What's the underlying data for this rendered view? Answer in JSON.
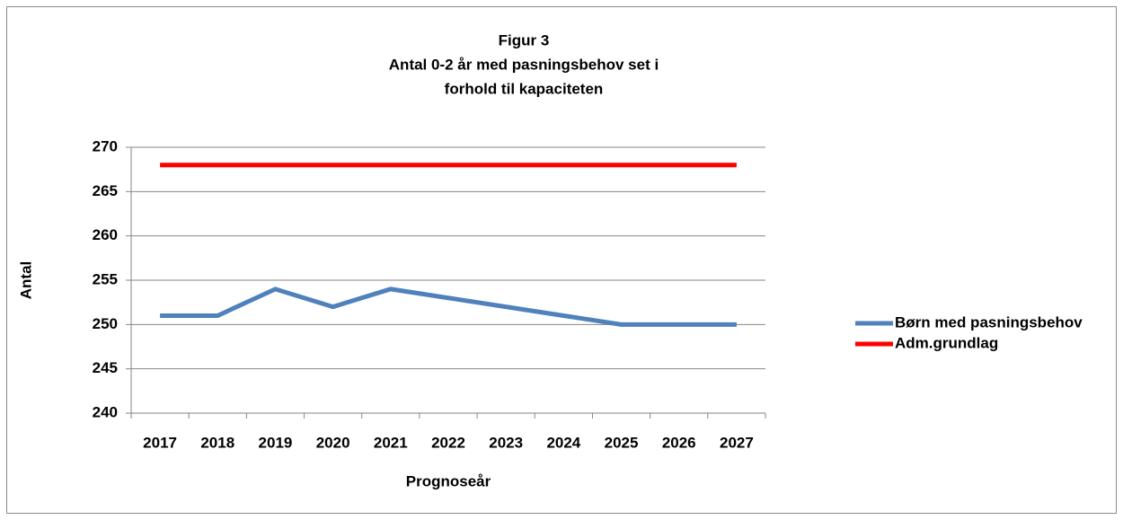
{
  "chart_data": {
    "type": "line",
    "title": [
      "Figur 3",
      "Antal 0-2 år med pasningsbehov set i",
      "forhold til kapaciteten"
    ],
    "x_label": "Prognoseår",
    "y_label": "Antal",
    "categories": [
      "2017",
      "2018",
      "2019",
      "2020",
      "2021",
      "2022",
      "2023",
      "2024",
      "2025",
      "2026",
      "2027"
    ],
    "series": [
      {
        "name": "Børn med pasningsbehov",
        "color": "#4f81bd",
        "values": [
          251,
          251,
          254,
          252,
          254,
          253,
          252,
          251,
          250,
          250,
          250
        ]
      },
      {
        "name": "Adm.grundlag",
        "color": "#ff0000",
        "values": [
          268,
          268,
          268,
          268,
          268,
          268,
          268,
          268,
          268,
          268,
          268
        ]
      }
    ],
    "ylim": [
      240,
      270
    ],
    "yticks": [
      240,
      245,
      250,
      255,
      260,
      265,
      270
    ],
    "grid": true,
    "legend": "right"
  }
}
